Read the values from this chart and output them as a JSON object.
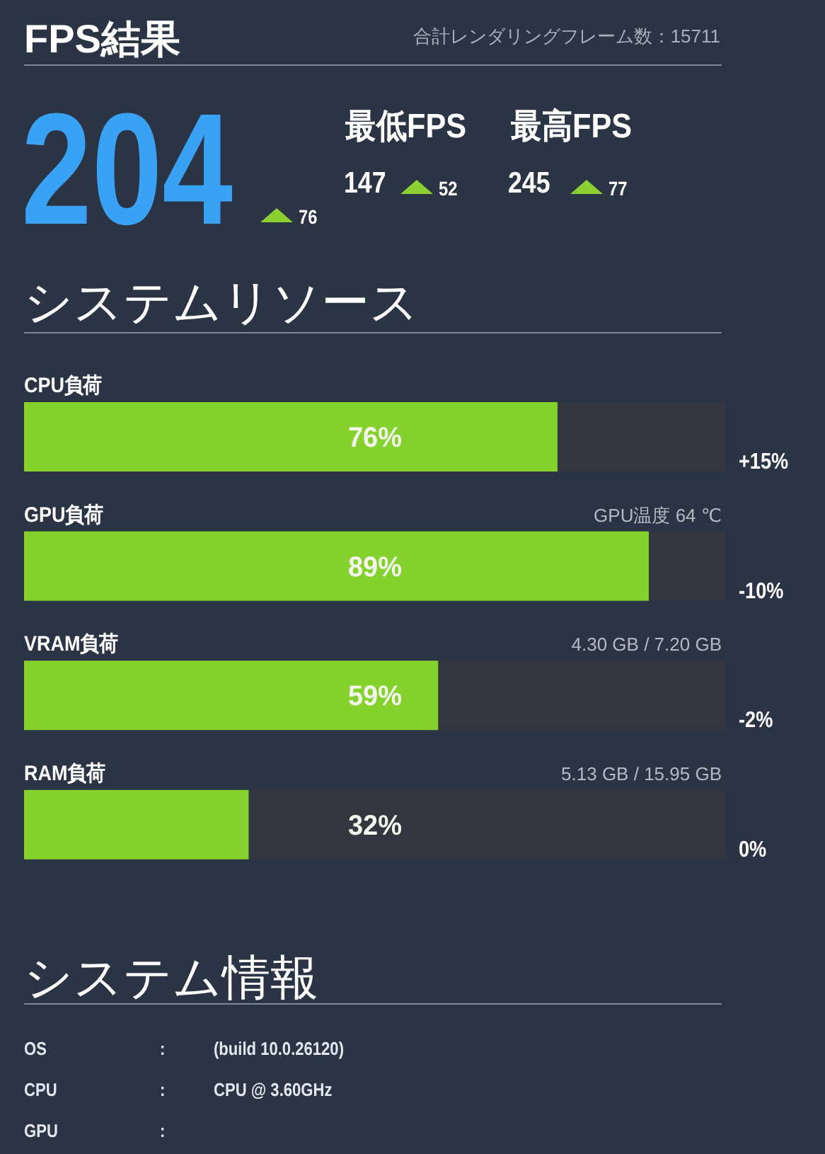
{
  "chart_data": [
    {
      "type": "other",
      "title": "FPS結果",
      "annotations": [
        "合計レンダリングフレーム数：15711",
        "204",
        "76",
        "最低FPS",
        "147",
        "52",
        "最高FPS",
        "245",
        "77"
      ]
    },
    {
      "type": "bar",
      "title": "システムリソース",
      "orientation": "horizontal",
      "categories": [
        "CPU負荷",
        "GPU負荷",
        "VRAM負荷",
        "RAM負荷"
      ],
      "values": [
        76,
        89,
        59,
        32
      ],
      "color": "#85d12e",
      "value_labels": [
        "76%",
        "89%",
        "59%",
        "32%"
      ],
      "xlim": [
        0,
        100
      ],
      "tick_labels": "y",
      "annotations": [
        "GPU温度 64 ℃",
        "4.30 GB / 7.20 GB",
        "5.13 GB / 15.95 GB",
        "+15%",
        "-10%",
        "-2%",
        "0%"
      ]
    },
    {
      "type": "other",
      "title": "システム情報",
      "annotations": [
        "OS",
        ":",
        "(build 10.0.26120)",
        "CPU",
        ":",
        "CPU @ 3.60GHz",
        "GPU",
        ":"
      ]
    }
  ]
}
